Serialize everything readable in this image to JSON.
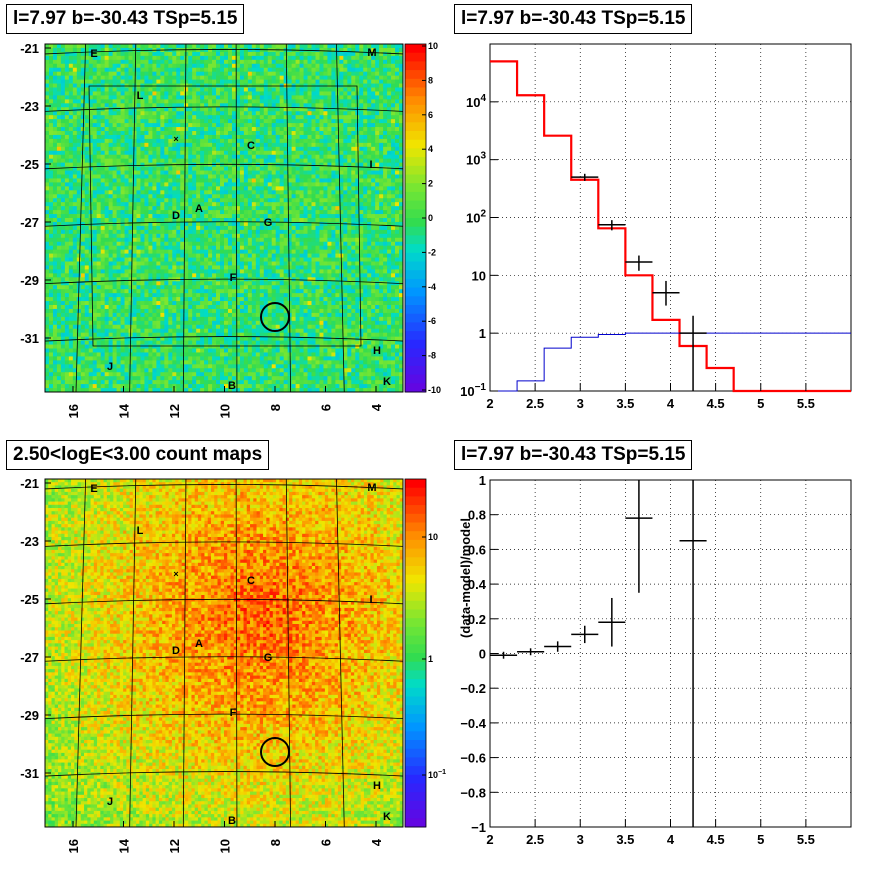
{
  "panels": {
    "tl_title": "l=7.97 b=-30.43 TSp=5.15",
    "tr_title": "l=7.97 b=-30.43 TSp=5.15",
    "bl_title": "2.50<logE<3.00 count maps",
    "br_title": "l=7.97 b=-30.43 TSp=5.15"
  },
  "colors": {
    "red": "#ff0000",
    "blue": "#0000cc",
    "black": "#000000"
  },
  "chart_data": [
    {
      "type": "heatmap",
      "panel": "top-left",
      "title": "l=7.97 b=-30.43 TSp=5.15",
      "xticks": [
        "16",
        "14",
        "12",
        "10",
        "8",
        "6",
        "4"
      ],
      "yticks": [
        "-21",
        "-23",
        "-25",
        "-27",
        "-29",
        "-31"
      ],
      "colorbar_ticks": [
        "10",
        "8",
        "6",
        "4",
        "2",
        "0",
        "-2",
        "-4",
        "-6",
        "-8",
        "-10"
      ],
      "source_labels": [
        "E",
        "M",
        "L",
        "C",
        "I",
        "D",
        "A",
        "G",
        "F",
        "H",
        "J",
        "B",
        "K"
      ]
    },
    {
      "type": "line",
      "panel": "top-right",
      "title": "l=7.97 b=-30.43 TSp=5.15",
      "ylog": true,
      "xlim": [
        2,
        6
      ],
      "ylim": [
        0.1,
        100000
      ],
      "xticks": [
        "2",
        "2.5",
        "3",
        "3.5",
        "4",
        "4.5",
        "5",
        "5.5"
      ],
      "yticks": [
        "10^-1",
        "1",
        "10",
        "10^2",
        "10^3",
        "10^4"
      ],
      "series": [
        {
          "name": "",
          "style": "red-step",
          "edges": [
            2.0,
            2.3,
            2.6,
            2.9,
            3.2,
            3.5,
            3.8,
            4.1,
            4.4,
            4.7,
            6.0
          ],
          "values": [
            50000,
            13000,
            2600,
            450,
            65,
            10,
            1.7,
            0.6,
            0.25,
            0.1
          ]
        },
        {
          "name": "",
          "style": "blue-step",
          "edges": [
            2.0,
            2.3,
            2.6,
            2.9,
            3.2,
            3.5,
            3.8,
            6.0
          ],
          "values": [
            0.08,
            0.15,
            0.55,
            0.85,
            0.95,
            1.0,
            1.0
          ]
        },
        {
          "name": "",
          "style": "black-points",
          "x": [
            3.05,
            3.35,
            3.65,
            3.95,
            4.25
          ],
          "xerr": 0.15,
          "y": [
            500,
            75,
            17,
            5,
            1
          ],
          "ylo": [
            430,
            60,
            12,
            3,
            0.05
          ],
          "yhi": [
            570,
            90,
            22,
            8,
            2
          ]
        }
      ]
    },
    {
      "type": "heatmap",
      "panel": "bottom-left",
      "title": "2.50<logE<3.00 count maps",
      "xticks": [
        "16",
        "14",
        "12",
        "10",
        "8",
        "6",
        "4"
      ],
      "yticks": [
        "-21",
        "-23",
        "-25",
        "-27",
        "-29",
        "-31"
      ],
      "colorbar_ticks": [
        "10",
        "1",
        "10^-1"
      ],
      "source_labels": [
        "E",
        "M",
        "L",
        "C",
        "I",
        "D",
        "A",
        "G",
        "F",
        "H",
        "J",
        "B",
        "K"
      ]
    },
    {
      "type": "scatter",
      "panel": "bottom-right",
      "title": "l=7.97 b=-30.43 TSp=5.15",
      "ylabel": "(data-model)/model",
      "xlim": [
        2,
        6
      ],
      "ylim": [
        -1,
        1
      ],
      "xticks": [
        "2",
        "2.5",
        "3",
        "3.5",
        "4",
        "4.5",
        "5",
        "5.5"
      ],
      "yticks": [
        "1",
        "0.8",
        "0.6",
        "0.4",
        "0.2",
        "0",
        "-0.2",
        "-0.4",
        "-0.6",
        "-0.8",
        "-1"
      ],
      "x": [
        2.15,
        2.45,
        2.75,
        3.05,
        3.35,
        3.65,
        4.25
      ],
      "xerr": 0.15,
      "y": [
        -0.01,
        0.01,
        0.04,
        0.11,
        0.18,
        0.78,
        0.65
      ],
      "ylo": [
        -0.03,
        -0.01,
        0.01,
        0.06,
        0.04,
        0.35,
        -1.0
      ],
      "yhi": [
        0.01,
        0.03,
        0.07,
        0.16,
        0.32,
        1.0,
        1.0
      ]
    }
  ]
}
